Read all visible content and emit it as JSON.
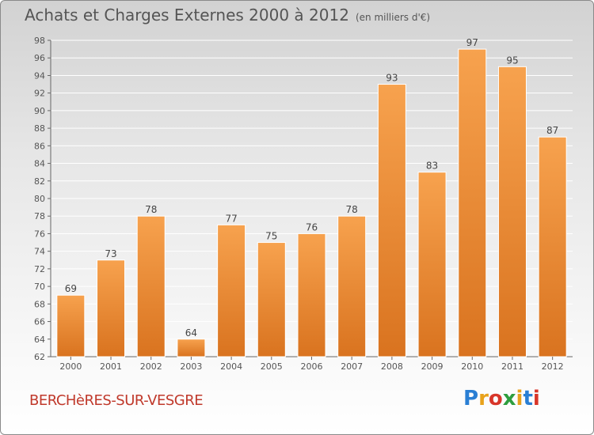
{
  "header": {
    "title": "Achats et Charges Externes 2000 à 2012",
    "unit": "(en milliers d'€)"
  },
  "footer": {
    "commune": "BERCHèRES-SUR-VESGRE",
    "brand": "Proxiti"
  },
  "colors": {
    "bar_top": "#f7a24e",
    "bar_bottom": "#d9731f",
    "text": "#555555",
    "commune": "#c0392b"
  },
  "chart_data": {
    "type": "bar",
    "categories": [
      "2000",
      "2001",
      "2002",
      "2003",
      "2004",
      "2005",
      "2006",
      "2007",
      "2008",
      "2009",
      "2010",
      "2011",
      "2012"
    ],
    "values": [
      69,
      73,
      78,
      64,
      77,
      75,
      76,
      78,
      93,
      83,
      97,
      95,
      87
    ],
    "ylim": [
      62,
      98
    ],
    "yticks": [
      62,
      64,
      66,
      68,
      70,
      72,
      74,
      76,
      78,
      80,
      82,
      84,
      86,
      88,
      90,
      92,
      94,
      96,
      98
    ],
    "grid": true,
    "data_labels": true,
    "title": "Achats et Charges Externes 2000 à 2012",
    "xlabel": "",
    "ylabel": ""
  }
}
